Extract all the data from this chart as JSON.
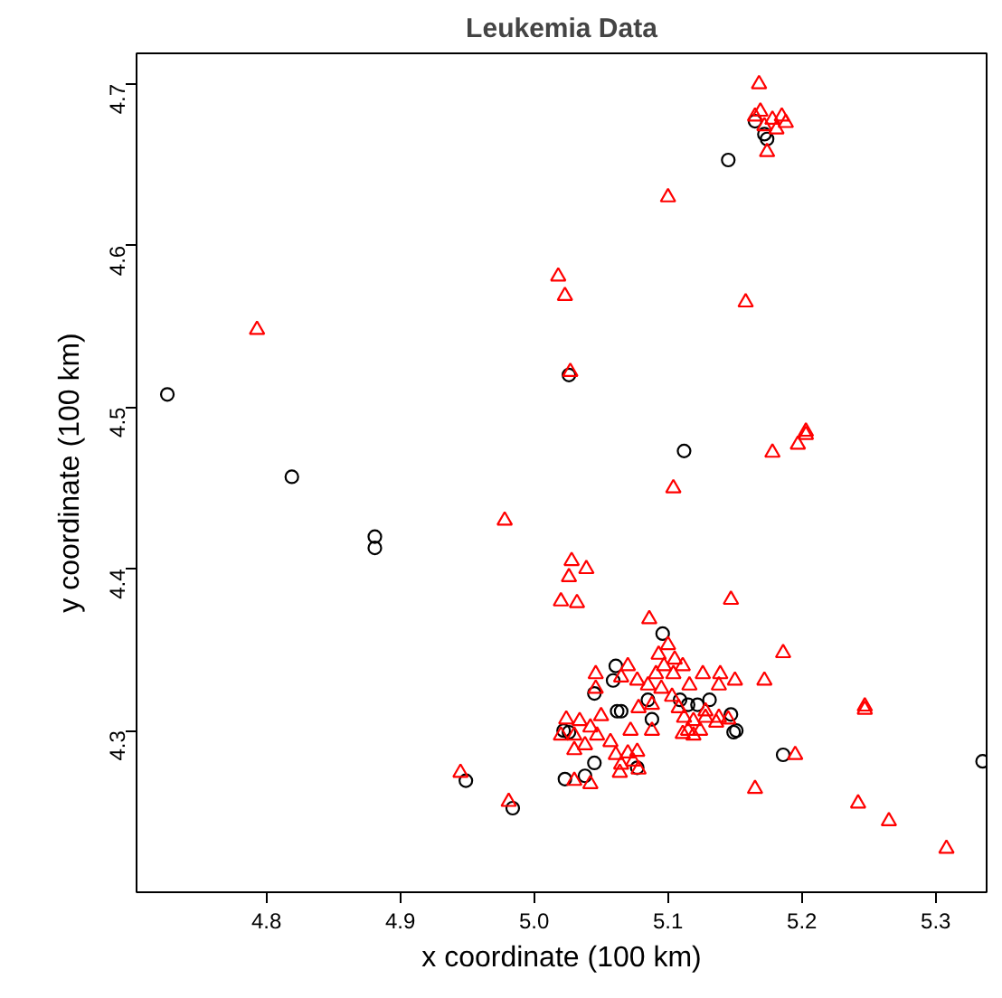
{
  "chart_data": {
    "type": "scatter",
    "title": "Leukemia Data",
    "xlabel": "x coordinate (100 km)",
    "ylabel": "y coordinate (100 km)",
    "xlim": [
      4.703,
      5.338
    ],
    "ylim": [
      4.2,
      4.719
    ],
    "xticks": [
      4.8,
      4.9,
      {
        "value": 5.0,
        "label": "5.0"
      },
      5.1,
      5.2,
      5.3
    ],
    "yticks": [
      4.3,
      4.4,
      4.5,
      4.6,
      4.7
    ],
    "grid": false,
    "series": [
      {
        "color": "#000000",
        "marker": "circle",
        "x": [
          4.726,
          4.819,
          4.881,
          4.881,
          5.026,
          5.145,
          5.112,
          5.165,
          5.174,
          5.172,
          4.949,
          4.984,
          5.335,
          5.186,
          5.096,
          5.061,
          5.059,
          5.045,
          5.085,
          5.062,
          5.065,
          5.088,
          5.022,
          5.026,
          5.045,
          5.023,
          5.038,
          5.077,
          5.109,
          5.122,
          5.131,
          5.147,
          5.149,
          5.151,
          5.115
        ],
        "values": [
          4.508,
          4.457,
          4.42,
          4.413,
          4.52,
          4.653,
          4.473,
          4.677,
          4.666,
          4.669,
          4.269,
          4.252,
          4.281,
          4.285,
          4.36,
          4.34,
          4.331,
          4.323,
          4.319,
          4.312,
          4.312,
          4.307,
          4.3,
          4.299,
          4.28,
          4.27,
          4.272,
          4.277,
          4.319,
          4.316,
          4.319,
          4.31,
          4.299,
          4.3,
          4.316
        ]
      },
      {
        "color": "#ff0000",
        "marker": "triangle",
        "x": [
          4.793,
          5.018,
          5.023,
          5.027,
          4.978,
          5.028,
          5.026,
          5.02,
          5.032,
          5.039,
          4.945,
          4.981,
          5.168,
          5.165,
          5.169,
          5.178,
          5.185,
          5.188,
          5.181,
          5.172,
          5.174,
          5.1,
          5.158,
          5.178,
          5.197,
          5.203,
          5.203,
          5.104,
          5.186,
          5.172,
          5.247,
          5.247,
          5.195,
          5.242,
          5.265,
          5.308,
          5.165,
          5.147,
          5.086,
          5.1,
          5.093,
          5.105,
          5.097,
          5.111,
          5.091,
          5.104,
          5.07,
          5.046,
          5.065,
          5.077,
          5.085,
          5.046,
          5.126,
          5.139,
          5.15,
          5.138,
          5.116,
          5.103,
          5.078,
          5.05,
          5.034,
          5.024,
          5.042,
          5.02,
          5.03,
          5.047,
          5.072,
          5.108,
          5.112,
          5.119,
          5.128,
          5.138,
          5.124,
          5.115,
          5.111,
          5.128,
          5.119,
          5.03,
          5.038,
          5.057,
          5.061,
          5.07,
          5.077,
          5.065,
          5.074,
          5.064,
          5.078,
          5.03,
          5.042,
          5.088,
          5.136,
          5.145,
          5.095,
          5.088
        ],
        "values": [
          4.548,
          4.581,
          4.569,
          4.522,
          4.43,
          4.405,
          4.395,
          4.38,
          4.379,
          4.4,
          4.274,
          4.256,
          4.7,
          4.68,
          4.683,
          4.678,
          4.68,
          4.676,
          4.672,
          4.674,
          4.658,
          4.63,
          4.565,
          4.472,
          4.477,
          4.485,
          4.483,
          4.45,
          4.348,
          4.331,
          4.315,
          4.313,
          4.285,
          4.255,
          4.244,
          4.227,
          4.264,
          4.381,
          4.369,
          4.353,
          4.347,
          4.344,
          4.34,
          4.34,
          4.335,
          4.335,
          4.34,
          4.335,
          4.333,
          4.331,
          4.328,
          4.326,
          4.335,
          4.335,
          4.331,
          4.328,
          4.328,
          4.321,
          4.314,
          4.309,
          4.306,
          4.307,
          4.302,
          4.297,
          4.297,
          4.297,
          4.3,
          4.314,
          4.308,
          4.306,
          4.308,
          4.308,
          4.3,
          4.3,
          4.298,
          4.312,
          4.297,
          4.288,
          4.291,
          4.293,
          4.285,
          4.286,
          4.287,
          4.279,
          4.281,
          4.274,
          4.276,
          4.269,
          4.267,
          4.3,
          4.305,
          4.307,
          4.326,
          4.316
        ]
      }
    ]
  }
}
